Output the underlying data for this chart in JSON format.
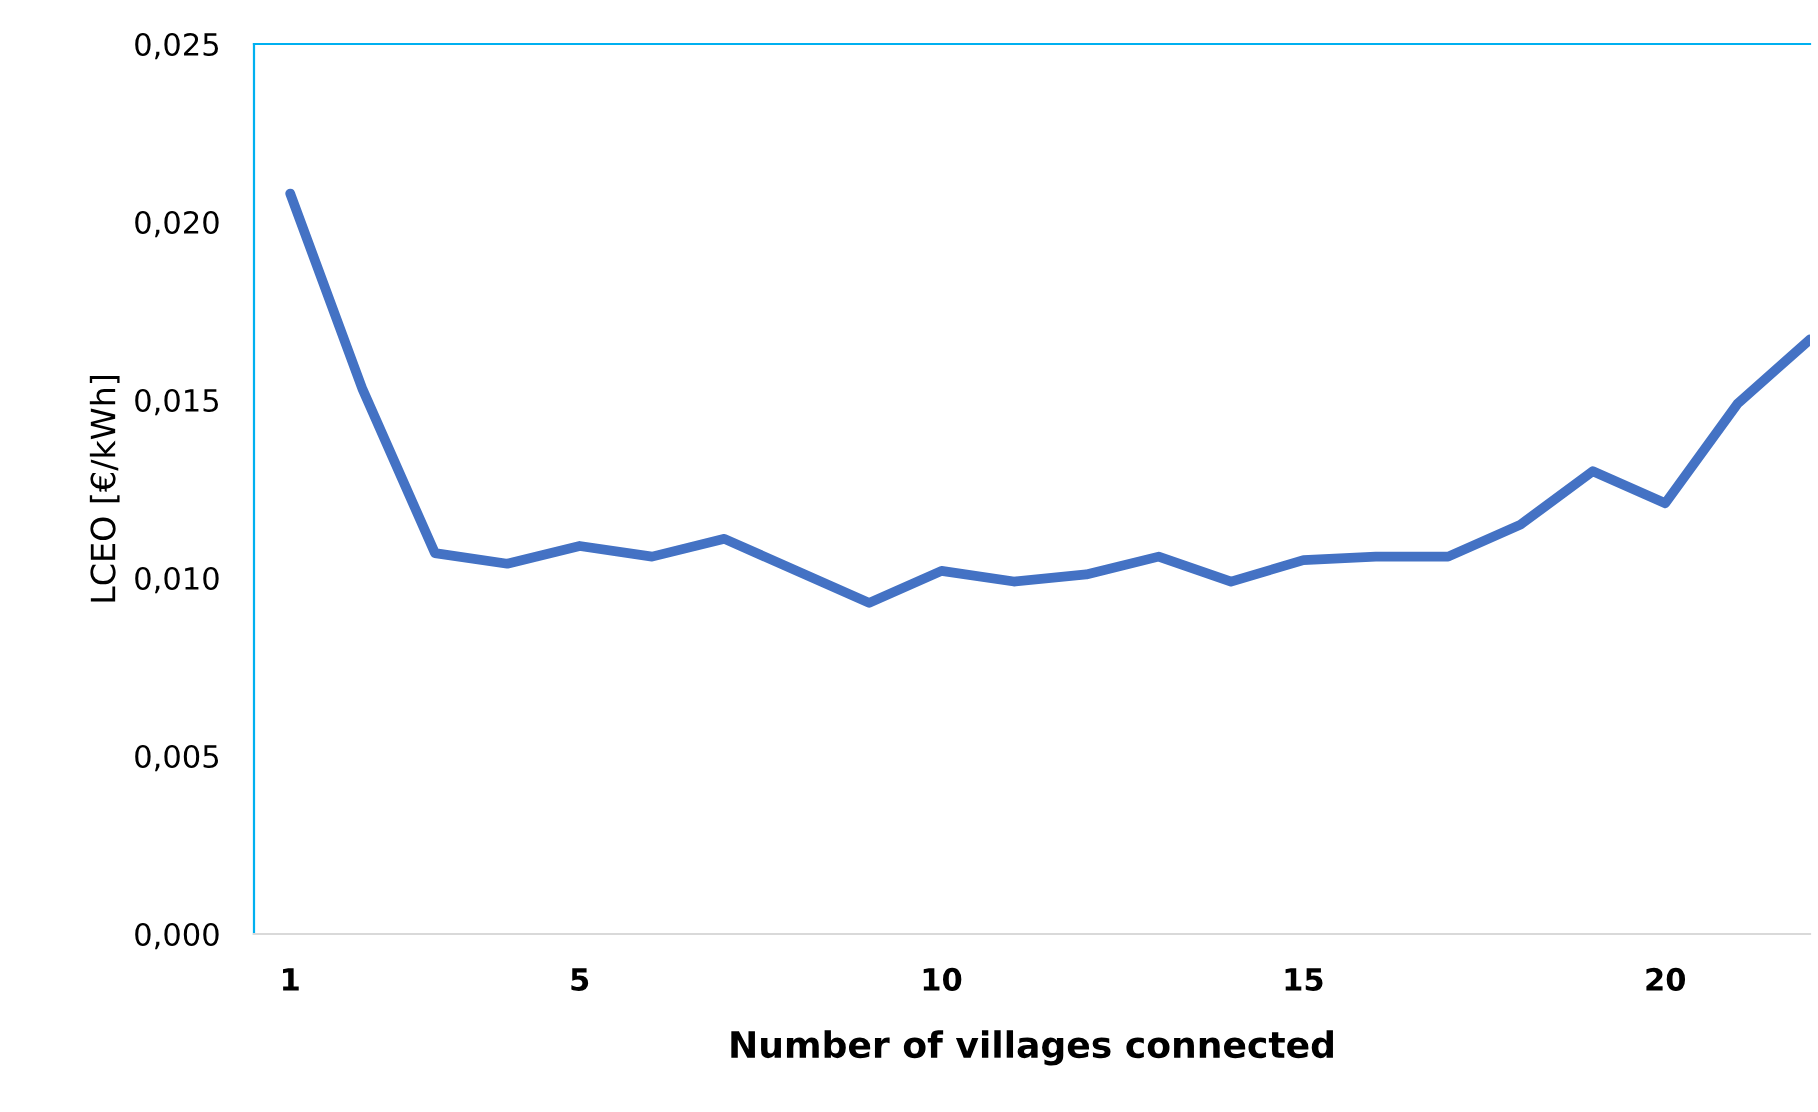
{
  "chart_data": {
    "type": "line",
    "xlabel": "Number of villages connected",
    "ylabel": "LCEO [€/kWh]",
    "x": [
      1,
      2,
      3,
      4,
      5,
      6,
      7,
      8,
      9,
      10,
      11,
      12,
      13,
      14,
      15,
      16,
      17,
      18,
      19,
      20,
      21,
      22
    ],
    "series": [
      {
        "color": "#4472c4",
        "values": [
          0.0208,
          0.0153,
          0.0107,
          0.0104,
          0.0109,
          0.0106,
          0.0111,
          0.0102,
          0.0093,
          0.0102,
          0.0099,
          0.0101,
          0.0106,
          0.0099,
          0.0105,
          0.0106,
          0.0106,
          0.0115,
          0.013,
          0.0121,
          0.0149,
          0.0167
        ]
      }
    ],
    "xlim": [
      0.5,
      22
    ],
    "xticks": [
      1,
      5,
      10,
      15,
      20
    ],
    "ylim": [
      0,
      0.025
    ],
    "yticks": [
      {
        "value": 0,
        "label": "0,000"
      },
      {
        "value": 0.005,
        "label": "0,005"
      },
      {
        "value": 0.01,
        "label": "0,010"
      },
      {
        "value": 0.015,
        "label": "0,015"
      },
      {
        "value": 0.02,
        "label": "0,020"
      },
      {
        "value": 0.025,
        "label": "0,025"
      }
    ],
    "grid": false,
    "marker": "none",
    "line_style": "solid"
  }
}
